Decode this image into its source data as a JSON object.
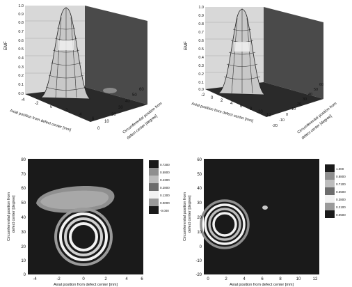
{
  "surface_plots": [
    {
      "zlabel": "EMF",
      "z_ticks": [
        "1.0",
        "0.9",
        "0.8",
        "0.7",
        "0.6",
        "0.5",
        "0.4",
        "0.3",
        "0.2",
        "0.1",
        "0.0"
      ],
      "axial_ticks": [
        "-4",
        "-2",
        "0",
        "2",
        "4",
        "6"
      ],
      "circ_ticks": [
        "0",
        "10",
        "20",
        "30",
        "40",
        "50",
        "60"
      ],
      "axial_label": "Axial position from defect center [mm]",
      "circ_label_line1": "Circumferential position from",
      "circ_label_line2": "defect center [degree]"
    },
    {
      "zlabel": "EMF",
      "z_ticks": [
        "1.0",
        "0.9",
        "0.8",
        "0.7",
        "0.6",
        "0.5",
        "0.4",
        "0.3",
        "0.2",
        "0.1",
        "0.0"
      ],
      "axial_ticks": [
        "-2",
        "0",
        "2",
        "4",
        "6",
        "8",
        "10",
        "12"
      ],
      "circ_ticks": [
        "-20",
        "-10",
        "0",
        "10",
        "20",
        "30",
        "40",
        "50",
        "60"
      ],
      "axial_label": "Axial position from defect center [mm]",
      "circ_label_line1": "Circumferential position from",
      "circ_label_line2": "defect center [degree]"
    }
  ],
  "contour_plots": [
    {
      "y_ticks": [
        "80",
        "70",
        "60",
        "50",
        "40",
        "30",
        "20",
        "10",
        "0"
      ],
      "x_ticks": [
        "-4",
        "-2",
        "0",
        "2",
        "4",
        "6"
      ],
      "xlabel": "Axial position from defect center [mm]",
      "ylabel_line1": "Circumferential position from",
      "ylabel_line2": "defect center [degree]",
      "legend": [
        "0.7300",
        "0.5800",
        "0.4300",
        "0.2800",
        "0.1300",
        "0.0000",
        "-0.000"
      ]
    },
    {
      "y_ticks": [
        "60",
        "50",
        "40",
        "30",
        "20",
        "10",
        "0",
        "-10",
        "-20"
      ],
      "x_ticks": [
        "0",
        "2",
        "4",
        "6",
        "8",
        "10",
        "12"
      ],
      "xlabel": "Axial position from defect center [mm]",
      "ylabel_line1": "Circumferential position from",
      "ylabel_line2": "defect center [degree]",
      "legend": [
        "1.000",
        "0.8800",
        "0.7100",
        "0.5500",
        "0.3800",
        "0.2100",
        "0.0500"
      ]
    }
  ],
  "colors": {
    "dark_fill": "#1a1a1a",
    "wall": "#4a4a4a",
    "light_ring": "#f2f2f2",
    "mid_ring": "#8f8f8f",
    "surface": "#c8c8c8"
  }
}
